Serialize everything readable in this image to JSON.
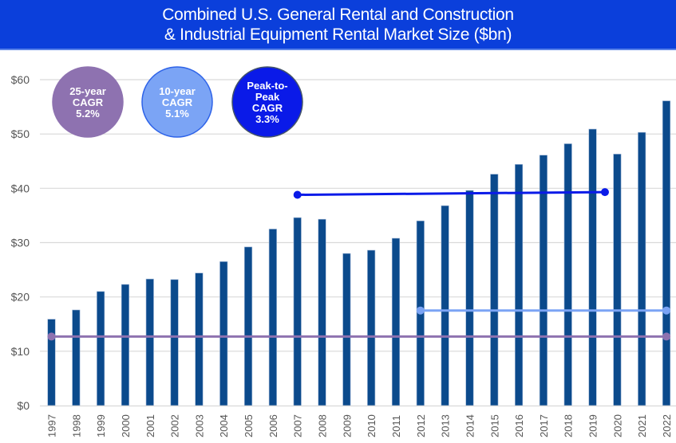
{
  "header": {
    "title_line1": "Combined U.S. General Rental and Construction",
    "title_line2": "& Industrial Equipment Rental Market Size ($bn)"
  },
  "colors": {
    "title_bg": "#0B3FDB",
    "bar": "#0B4A8C",
    "gridline": "#D9D9D9",
    "cagr_25yr": "#8E72B0",
    "cagr_10yr": "#7BA4F5",
    "cagr_peak": "#0A1AE8"
  },
  "chart_data": {
    "type": "bar",
    "title": "Combined U.S. General Rental and Construction & Industrial Equipment Rental Market Size ($bn)",
    "xlabel": "",
    "ylabel": "",
    "ylim": [
      0,
      60
    ],
    "yticks": [
      0,
      10,
      20,
      30,
      40,
      50,
      60
    ],
    "ytick_labels": [
      "$0",
      "$10",
      "$20",
      "$30",
      "$40",
      "$50",
      "$60"
    ],
    "grid": true,
    "categories": [
      "1997",
      "1998",
      "1999",
      "2000",
      "2001",
      "2002",
      "2003",
      "2004",
      "2005",
      "2006",
      "2007",
      "2008",
      "2009",
      "2010",
      "2011",
      "2012",
      "2013",
      "2014",
      "2015",
      "2016",
      "2017",
      "2018",
      "2019",
      "2020",
      "2021",
      "2022"
    ],
    "values": [
      15.9,
      17.6,
      21.0,
      22.3,
      23.3,
      23.2,
      24.4,
      26.5,
      29.2,
      32.5,
      34.6,
      34.3,
      28.0,
      28.6,
      30.8,
      34.0,
      36.8,
      39.6,
      42.6,
      44.4,
      46.1,
      48.2,
      50.9,
      46.3,
      50.3,
      56.1
    ],
    "cagr_lines": [
      {
        "name": "25-year CAGR",
        "start": "1997",
        "end": "2022",
        "y": 12.7,
        "color": "#8E72B0"
      },
      {
        "name": "10-year CAGR",
        "start": "2012",
        "end": "2022",
        "y": 17.5,
        "color": "#7BA4F5"
      },
      {
        "name": "Peak-to-Peak CAGR",
        "start": "2007",
        "end": "2019.5",
        "y_start": 38.8,
        "y_end": 39.3,
        "color": "#0A1AE8"
      }
    ],
    "annotations": [
      {
        "lines": [
          "25-year",
          "CAGR",
          "5.2%"
        ],
        "color": "#8E72B0",
        "border": "#8E72B0"
      },
      {
        "lines": [
          "10-year",
          "CAGR",
          "5.1%"
        ],
        "color": "#7BA4F5",
        "border": "#2E63E8"
      },
      {
        "lines": [
          "Peak-to-",
          "Peak",
          "CAGR",
          "3.3%"
        ],
        "color": "#0A1AE8",
        "border": "#44546A"
      }
    ]
  }
}
